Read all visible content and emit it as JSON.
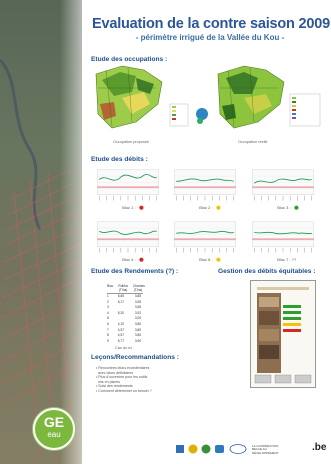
{
  "header": {
    "title": "Evaluation de la contre saison 2009",
    "subtitle": "- périmètre irrigué de la Vallée du Kou -"
  },
  "sections": {
    "occupations": "Etude des occupations :",
    "debits": "Etude des débits :",
    "rendements": "Etude des Rendements (?) :",
    "gestion": "Gestion des débits équitables :",
    "lecons": "Leçons/Recommandations :"
  },
  "occupation_captions": [
    "Occupation proposée",
    "Occupation réelle"
  ],
  "blocs": [
    {
      "label": "Bloc 1 :",
      "status": "red"
    },
    {
      "label": "Bloc 2 :",
      "status": "yellow"
    },
    {
      "label": "Bloc 3 :",
      "status": "green"
    },
    {
      "label": "Bloc 4 :",
      "status": "red"
    },
    {
      "label": "Bloc 6 :",
      "status": "yellow"
    },
    {
      "label": "Bloc 7 : ??",
      "status": "none"
    }
  ],
  "colors": {
    "red": "#d62728",
    "yellow": "#f2c500",
    "green": "#2ca02c",
    "title": "#2b5797",
    "section": "#1f4e8c"
  },
  "rendements_table": {
    "headers": [
      "Bloc",
      "Rdt/ha (T/ha)",
      "Chaînes (T/ha)"
    ],
    "rows": [
      [
        "1",
        "5,65",
        "3,85"
      ],
      [
        "2",
        "5,17",
        "3,95"
      ],
      [
        "3",
        "",
        "3,55"
      ],
      [
        "4",
        "5,20",
        "3,92"
      ],
      [
        "5",
        "",
        "3,00"
      ],
      [
        "6",
        "4,10",
        "3,80"
      ],
      [
        "7",
        "4,57",
        "3,80"
      ],
      [
        "8",
        "4,57",
        "3,80"
      ],
      [
        "9",
        "5,77",
        "3,90"
      ]
    ],
    "caption": "Cas du riz"
  },
  "lecons": [
    "Rencontres blocs excédentaires",
    "avec blocs déficitaires",
    "Plus d'ouverture pour les outils",
    "mis en places",
    "Suivi des rendements",
    "Comment déterminer un besoin ?"
  ],
  "logo": {
    "line1": "GE",
    "line2": "eau"
  },
  "partners": [
    "LA COOPÉRATION BELGE AU DÉVELOPPEMENT",
    ".be"
  ],
  "icons": [
    "satellite-map",
    "occupation-map",
    "flow-chart",
    "partner-logo"
  ]
}
